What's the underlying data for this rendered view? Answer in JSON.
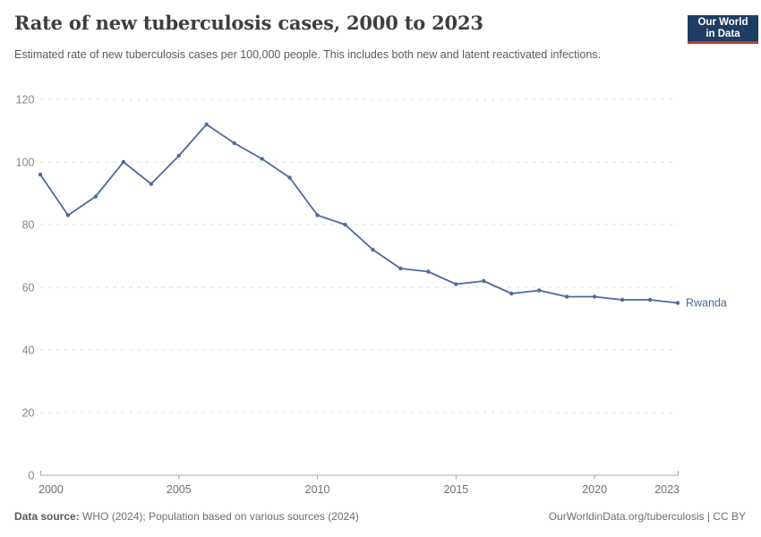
{
  "header": {
    "title": "Rate of new tuberculosis cases, 2000 to 2023",
    "subtitle": "Estimated rate of new tuberculosis cases per 100,000 people. This includes both new and latent reactivated infections.",
    "logo": {
      "line1": "Our World",
      "line2": "in Data",
      "bg_color": "#1d3d63",
      "bar_color": "#c7352c"
    }
  },
  "chart_data": {
    "type": "line",
    "title": "Rate of new tuberculosis cases, 2000 to 2023",
    "x": [
      2000,
      2001,
      2002,
      2003,
      2004,
      2005,
      2006,
      2007,
      2008,
      2009,
      2010,
      2011,
      2012,
      2013,
      2014,
      2015,
      2016,
      2017,
      2018,
      2019,
      2020,
      2021,
      2022,
      2023
    ],
    "series": [
      {
        "name": "Rwanda",
        "color": "#4c6a9c",
        "values": [
          96,
          83,
          89,
          100,
          93,
          102,
          112,
          106,
          101,
          95,
          83,
          80,
          72,
          66,
          65,
          61,
          62,
          58,
          59,
          57,
          57,
          56,
          56,
          55
        ]
      }
    ],
    "xlabel": "",
    "ylabel": "",
    "xlim": [
      2000,
      2023
    ],
    "ylim": [
      0,
      120
    ],
    "x_ticks": [
      2000,
      2005,
      2010,
      2015,
      2020,
      2023
    ],
    "y_ticks": [
      0,
      20,
      40,
      60,
      80,
      100,
      120
    ],
    "grid": "horizontal-dashed",
    "legend_position": "line-end-label",
    "colors": {
      "grid": "#dcdcdc",
      "axis": "#a8a8a8",
      "y_tick_label": "#858585",
      "x_tick_label": "#6f6f6f"
    }
  },
  "footer": {
    "source_label": "Data source:",
    "source_text": "WHO (2024); Population based on various sources (2024)",
    "credit": "OurWorldinData.org/tuberculosis | CC BY"
  }
}
